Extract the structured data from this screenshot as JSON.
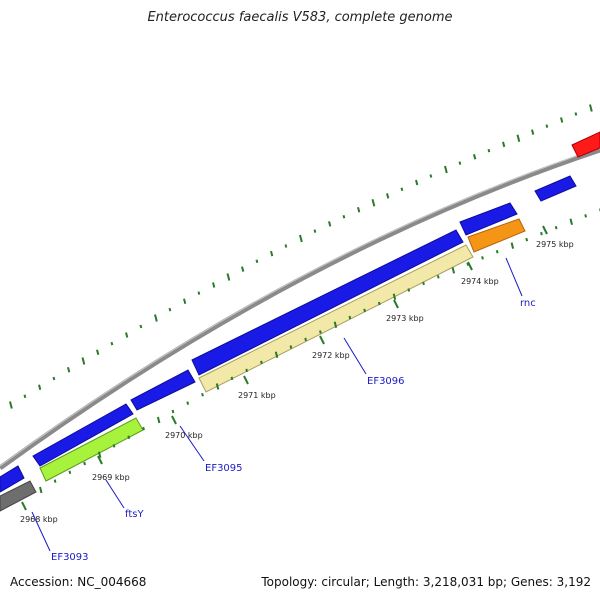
{
  "title": "Enterococcus faecalis V583, complete genome",
  "footer": {
    "accession": "Accession: NC_004668",
    "summary": "Topology: circular; Length: 3,218,031 bp; Genes: 3,192"
  },
  "colors": {
    "backbone": "#8a8a8a",
    "forward_gene": "#1a1ae6",
    "reverse_gene_cds": "#f2e8a8",
    "ftsY": "#a6f23c",
    "rnc": "#f59516",
    "rRNA_or_other": "#ff1a1a",
    "pseudo": "#6e6e6e",
    "gc_ticks": "#2a7a2a",
    "label": "#1a1ac8"
  },
  "ticks": [
    {
      "label": "2968 kbp"
    },
    {
      "label": "2969 kbp"
    },
    {
      "label": "2970 kbp"
    },
    {
      "label": "2971 kbp"
    },
    {
      "label": "2972 kbp"
    },
    {
      "label": "2973 kbp"
    },
    {
      "label": "2974 kbp"
    },
    {
      "label": "2975 kbp"
    }
  ],
  "gene_labels": [
    {
      "name": "EF3093"
    },
    {
      "name": "ftsY"
    },
    {
      "name": "EF3095"
    },
    {
      "name": "EF3096"
    },
    {
      "name": "rnc"
    }
  ]
}
